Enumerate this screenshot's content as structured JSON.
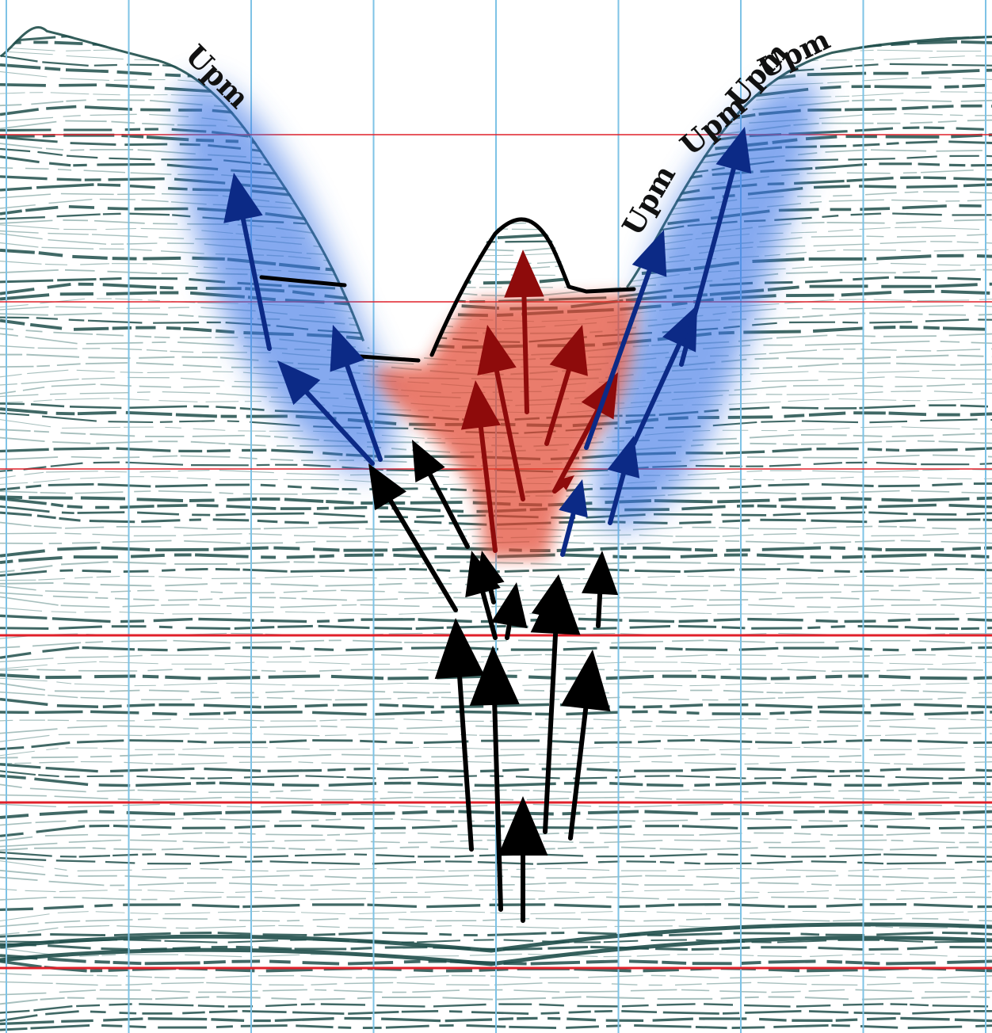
{
  "labels": [
    {
      "id": "upm-left",
      "text": "Upm"
    },
    {
      "id": "upm-right-1",
      "text": "Upm"
    },
    {
      "id": "upm-right-2",
      "text": "Upm"
    },
    {
      "id": "upm-right-3",
      "text": "Upm"
    },
    {
      "id": "upm-right-4",
      "text": "Upm"
    }
  ],
  "colors": {
    "seismic": "#1f4e4a",
    "seismic_faint": "#5c8a86",
    "grid_vertical": "#7ec3e6",
    "grid_horizontal": "#e0202a",
    "blue_zone": "#3b74e6",
    "red_zone": "#e2452f",
    "arrow_black": "#000000",
    "arrow_blue": "#0c2a86",
    "arrow_red": "#8e0b0b",
    "outline": "#000000"
  }
}
